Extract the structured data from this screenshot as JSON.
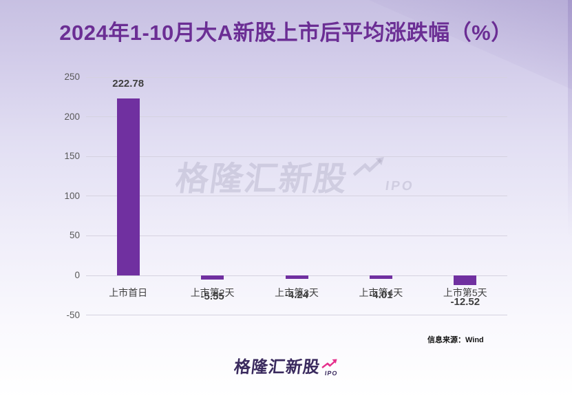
{
  "title": "2024年1-10月大A新股上市后平均涨跌幅（%）",
  "source_note": "信息来源：Wind",
  "watermark": {
    "text": "格隆汇新股",
    "suffix": "IPO"
  },
  "logo": {
    "text": "格隆汇新股",
    "suffix": "IPO"
  },
  "colors": {
    "bar_fill": "#7030A0",
    "title_text": "#6B2E94",
    "logo_text": "#3A2A5E",
    "accent_pink": "#E5308C",
    "gridline": "#d5d2e0",
    "axis_text": "#595959",
    "label_text": "#3f3f3f"
  },
  "chart_data": {
    "type": "bar",
    "title": "2024年1-10月大A新股上市后平均涨跌幅（%）",
    "categories": [
      "上市首日",
      "上市第2天",
      "上市第3天",
      "上市第4天",
      "上市第5天"
    ],
    "values": [
      222.78,
      -5.55,
      -4.24,
      -4.01,
      -12.52
    ],
    "value_labels": [
      "222.78",
      "-5.55",
      "-4.24",
      "-4.01",
      "-12.52"
    ],
    "xlabel": "",
    "ylabel": "",
    "ylim": [
      -50,
      250
    ],
    "yticks": [
      250,
      200,
      150,
      100,
      50,
      0,
      -50
    ],
    "grid": true,
    "legend": false
  }
}
